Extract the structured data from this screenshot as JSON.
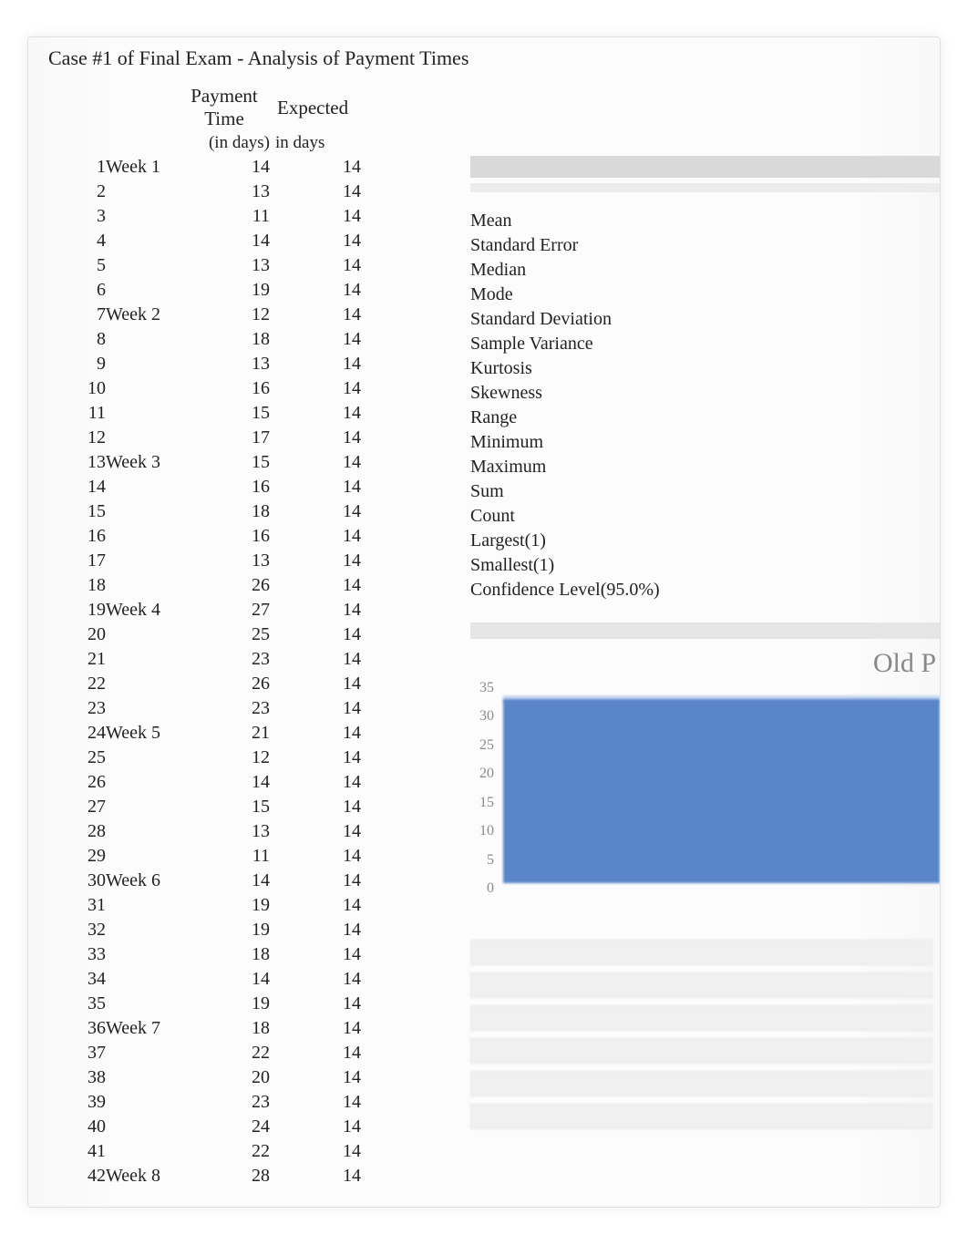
{
  "title": "Case #1 of Final Exam - Analysis of Payment Times",
  "columns": {
    "payment_header": "Payment Time",
    "payment_sub": "(in days)",
    "expected_header": "Expected",
    "expected_sub": "in days"
  },
  "rows": [
    {
      "idx": 1,
      "week": "Week 1",
      "pay": 14,
      "exp": 14
    },
    {
      "idx": 2,
      "week": "",
      "pay": 13,
      "exp": 14
    },
    {
      "idx": 3,
      "week": "",
      "pay": 11,
      "exp": 14
    },
    {
      "idx": 4,
      "week": "",
      "pay": 14,
      "exp": 14
    },
    {
      "idx": 5,
      "week": "",
      "pay": 13,
      "exp": 14
    },
    {
      "idx": 6,
      "week": "",
      "pay": 19,
      "exp": 14
    },
    {
      "idx": 7,
      "week": "Week 2",
      "pay": 12,
      "exp": 14
    },
    {
      "idx": 8,
      "week": "",
      "pay": 18,
      "exp": 14
    },
    {
      "idx": 9,
      "week": "",
      "pay": 13,
      "exp": 14
    },
    {
      "idx": 10,
      "week": "",
      "pay": 16,
      "exp": 14
    },
    {
      "idx": 11,
      "week": "",
      "pay": 15,
      "exp": 14
    },
    {
      "idx": 12,
      "week": "",
      "pay": 17,
      "exp": 14
    },
    {
      "idx": 13,
      "week": "Week 3",
      "pay": 15,
      "exp": 14
    },
    {
      "idx": 14,
      "week": "",
      "pay": 16,
      "exp": 14
    },
    {
      "idx": 15,
      "week": "",
      "pay": 18,
      "exp": 14
    },
    {
      "idx": 16,
      "week": "",
      "pay": 16,
      "exp": 14
    },
    {
      "idx": 17,
      "week": "",
      "pay": 13,
      "exp": 14
    },
    {
      "idx": 18,
      "week": "",
      "pay": 26,
      "exp": 14
    },
    {
      "idx": 19,
      "week": "Week 4",
      "pay": 27,
      "exp": 14
    },
    {
      "idx": 20,
      "week": "",
      "pay": 25,
      "exp": 14
    },
    {
      "idx": 21,
      "week": "",
      "pay": 23,
      "exp": 14
    },
    {
      "idx": 22,
      "week": "",
      "pay": 26,
      "exp": 14
    },
    {
      "idx": 23,
      "week": "",
      "pay": 23,
      "exp": 14
    },
    {
      "idx": 24,
      "week": "Week 5",
      "pay": 21,
      "exp": 14
    },
    {
      "idx": 25,
      "week": "",
      "pay": 12,
      "exp": 14
    },
    {
      "idx": 26,
      "week": "",
      "pay": 14,
      "exp": 14
    },
    {
      "idx": 27,
      "week": "",
      "pay": 15,
      "exp": 14
    },
    {
      "idx": 28,
      "week": "",
      "pay": 13,
      "exp": 14
    },
    {
      "idx": 29,
      "week": "",
      "pay": 11,
      "exp": 14
    },
    {
      "idx": 30,
      "week": "Week 6",
      "pay": 14,
      "exp": 14
    },
    {
      "idx": 31,
      "week": "",
      "pay": 19,
      "exp": 14
    },
    {
      "idx": 32,
      "week": "",
      "pay": 19,
      "exp": 14
    },
    {
      "idx": 33,
      "week": "",
      "pay": 18,
      "exp": 14
    },
    {
      "idx": 34,
      "week": "",
      "pay": 14,
      "exp": 14
    },
    {
      "idx": 35,
      "week": "",
      "pay": 19,
      "exp": 14
    },
    {
      "idx": 36,
      "week": "Week 7",
      "pay": 18,
      "exp": 14
    },
    {
      "idx": 37,
      "week": "",
      "pay": 22,
      "exp": 14
    },
    {
      "idx": 38,
      "week": "",
      "pay": 20,
      "exp": 14
    },
    {
      "idx": 39,
      "week": "",
      "pay": 23,
      "exp": 14
    },
    {
      "idx": 40,
      "week": "",
      "pay": 24,
      "exp": 14
    },
    {
      "idx": 41,
      "week": "",
      "pay": 22,
      "exp": 14
    },
    {
      "idx": 42,
      "week": "Week 8",
      "pay": 28,
      "exp": 14
    }
  ],
  "stats": [
    "Mean",
    "Standard Error",
    "Median",
    "Mode",
    "Standard Deviation",
    "Sample Variance",
    "Kurtosis",
    "Skewness",
    "Range",
    "Minimum",
    "Maximum",
    "Sum",
    "Count",
    "Largest(1)",
    "Smallest(1)",
    "Confidence Level(95.0%)"
  ],
  "chart": {
    "type": "area",
    "title_fragment": "Old P",
    "y_max": 35,
    "y_min": 0,
    "y_step": 5,
    "y_ticks": [
      35,
      30,
      25,
      20,
      15,
      10,
      5,
      0
    ],
    "series_color": "#5a86c9",
    "area_light": "#b9cfeb",
    "background_color": "#ffffff",
    "axis_label_color": "#8a8a8a",
    "axis_label_fontsize": 16
  },
  "colors": {
    "text": "#222222",
    "muted": "#888888",
    "panel_bg": "#fcfcfd",
    "divider": "#d9d9d9"
  }
}
